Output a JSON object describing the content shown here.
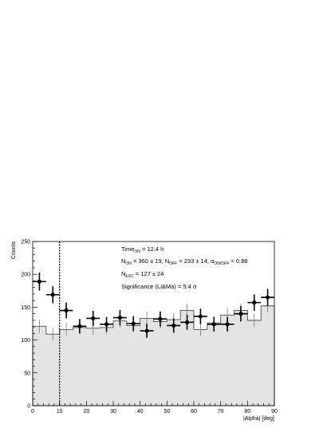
{
  "chart_data": {
    "type": "histogram",
    "xlabel": "|Alpha| [deg]",
    "ylabel": "Counts",
    "xlim": [
      0,
      90
    ],
    "ylim": [
      0,
      250
    ],
    "x_ticks": [
      "0",
      "10",
      "20",
      "30",
      "40",
      "50",
      "60",
      "70",
      "80",
      "90"
    ],
    "y_ticks": [
      "0",
      "50",
      "100",
      "150",
      "200",
      "250"
    ],
    "cut_line_x": 10,
    "bin_width": 5,
    "on_data": {
      "x": [
        2.5,
        7.5,
        12.5,
        17.5,
        22.5,
        27.5,
        32.5,
        37.5,
        42.5,
        47.5,
        52.5,
        57.5,
        62.5,
        67.5,
        72.5,
        77.5,
        82.5,
        87.5
      ],
      "y": [
        189,
        169,
        145,
        121,
        133,
        124,
        134,
        125,
        114,
        132,
        122,
        127,
        136,
        124,
        124,
        140,
        157,
        165
      ],
      "err": [
        13.7,
        13.0,
        12.0,
        11.0,
        11.5,
        11.1,
        11.6,
        11.2,
        10.7,
        11.5,
        11.0,
        11.3,
        11.7,
        11.1,
        11.1,
        11.8,
        12.5,
        12.8
      ]
    },
    "off_data": {
      "x": [
        2.5,
        7.5,
        12.5,
        17.5,
        22.5,
        27.5,
        32.5,
        37.5,
        42.5,
        47.5,
        52.5,
        57.5,
        62.5,
        67.5,
        72.5,
        77.5,
        82.5,
        87.5
      ],
      "y": [
        121,
        109,
        116,
        119,
        118,
        119,
        129,
        122,
        133,
        128,
        131,
        145,
        116,
        126,
        138,
        145,
        130,
        152
      ],
      "err": [
        10,
        10,
        10,
        10,
        10,
        10,
        10,
        10,
        10,
        10,
        10,
        10,
        10,
        10,
        10,
        10,
        10,
        10
      ]
    },
    "annotations": {
      "line1": {
        "main": "Time",
        "sub": "ON",
        "rest": " = 12.4 h"
      },
      "line2": {
        "a": "N",
        "a_sub": "ON",
        "b": " = 360 ± 19, N",
        "b_sub": "OFF",
        "c": " = 233 ± 14, α",
        "c_sub": "ON/OFF",
        "d": " = 0.88"
      },
      "line3": {
        "main": "N",
        "sub": "EXC",
        "rest": " = 127 ± 24"
      },
      "line4": "Significance (Li&Ma) = 5.4 σ"
    }
  }
}
